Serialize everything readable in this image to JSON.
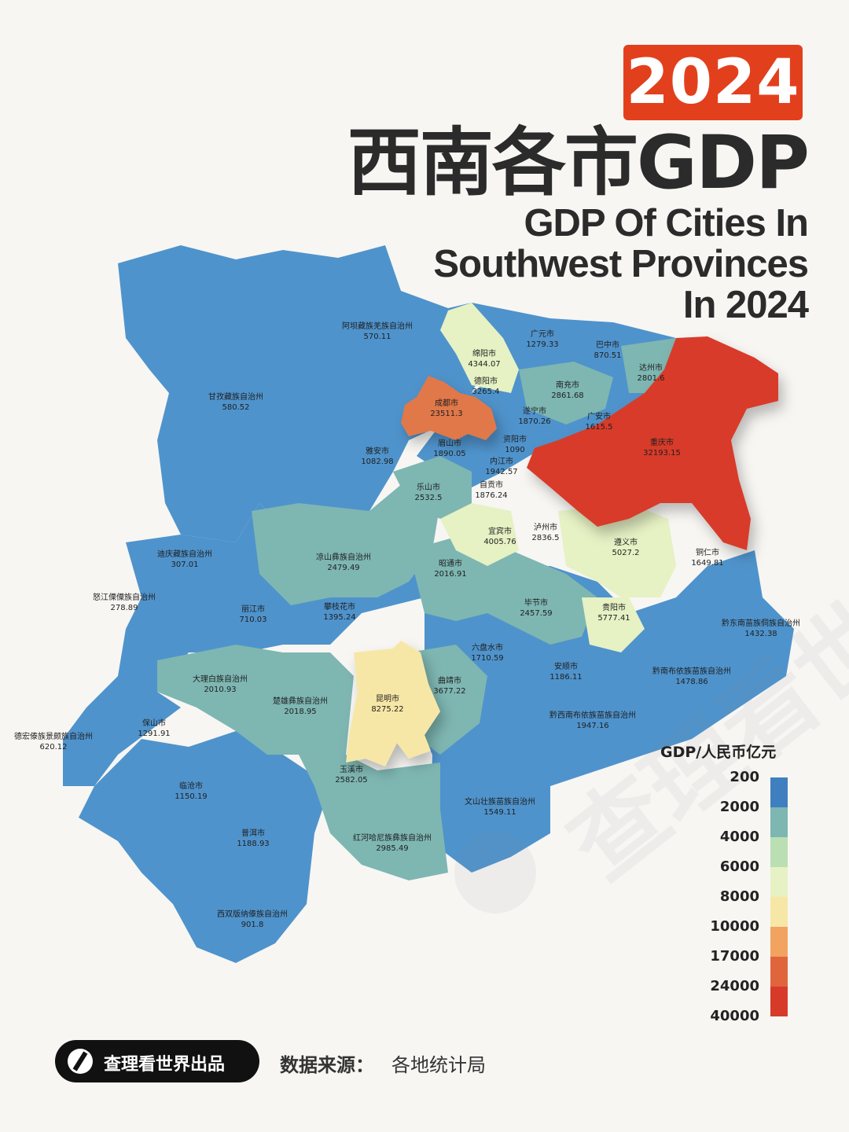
{
  "header": {
    "year": "2024",
    "title_cn": "西南各市GDP",
    "title_en_line1": "GDP Of Cities In",
    "title_en_line2": "Southwest Provinces",
    "title_en_line3": "In 2024"
  },
  "legend": {
    "title": "GDP/人民币亿元",
    "ticks": [
      "200",
      "2000",
      "4000",
      "6000",
      "8000",
      "10000",
      "17000",
      "24000",
      "40000"
    ],
    "colors": [
      "#3f7fbf",
      "#7eb6b2",
      "#b9dfb2",
      "#e6f1c4",
      "#f7e7a6",
      "#f1a35f",
      "#e0653d",
      "#d83a2a"
    ]
  },
  "regions": [
    {
      "name": "阿坝藏族羌族自治州",
      "value": "570.11"
    },
    {
      "name": "甘孜藏族自治州",
      "value": "580.52"
    },
    {
      "name": "广元市",
      "value": "1279.33"
    },
    {
      "name": "巴中市",
      "value": "870.51"
    },
    {
      "name": "绵阳市",
      "value": "4344.07"
    },
    {
      "name": "达州市",
      "value": "2801.6"
    },
    {
      "name": "德阳市",
      "value": "3265.4"
    },
    {
      "name": "南充市",
      "value": "2861.68"
    },
    {
      "name": "成都市",
      "value": "23511.3"
    },
    {
      "name": "遂宁市",
      "value": "1870.26"
    },
    {
      "name": "广安市",
      "value": "1615.5"
    },
    {
      "name": "雅安市",
      "value": "1082.98"
    },
    {
      "name": "眉山市",
      "value": "1890.05"
    },
    {
      "name": "资阳市",
      "value": "1090"
    },
    {
      "name": "重庆市",
      "value": "32193.15"
    },
    {
      "name": "内江市",
      "value": "1942.57"
    },
    {
      "name": "乐山市",
      "value": "2532.5"
    },
    {
      "name": "自贡市",
      "value": "1876.24"
    },
    {
      "name": "宜宾市",
      "value": "4005.76"
    },
    {
      "name": "泸州市",
      "value": "2836.5"
    },
    {
      "name": "迪庆藏族自治州",
      "value": "307.01"
    },
    {
      "name": "凉山彝族自治州",
      "value": "2479.49"
    },
    {
      "name": "昭通市",
      "value": "2016.91"
    },
    {
      "name": "遵义市",
      "value": "5027.2"
    },
    {
      "name": "铜仁市",
      "value": "1649.81"
    },
    {
      "name": "怒江傈僳族自治州",
      "value": "278.89"
    },
    {
      "name": "丽江市",
      "value": "710.03"
    },
    {
      "name": "攀枝花市",
      "value": "1395.24"
    },
    {
      "name": "毕节市",
      "value": "2457.59"
    },
    {
      "name": "贵阳市",
      "value": "5777.41"
    },
    {
      "name": "黔东南苗族侗族自治州",
      "value": "1432.38"
    },
    {
      "name": "六盘水市",
      "value": "1710.59"
    },
    {
      "name": "大理白族自治州",
      "value": "2010.93"
    },
    {
      "name": "安顺市",
      "value": "1186.11"
    },
    {
      "name": "黔南布依族苗族自治州",
      "value": "1478.86"
    },
    {
      "name": "曲靖市",
      "value": "3677.22"
    },
    {
      "name": "昆明市",
      "value": "8275.22"
    },
    {
      "name": "楚雄彝族自治州",
      "value": "2018.95"
    },
    {
      "name": "黔西南布依族苗族自治州",
      "value": "1947.16"
    },
    {
      "name": "保山市",
      "value": "1291.91"
    },
    {
      "name": "德宏傣族景颇族自治州",
      "value": "620.12"
    },
    {
      "name": "临沧市",
      "value": "1150.19"
    },
    {
      "name": "玉溪市",
      "value": "2582.05"
    },
    {
      "name": "文山壮族苗族自治州",
      "value": "1549.11"
    },
    {
      "name": "普洱市",
      "value": "1188.93"
    },
    {
      "name": "红河哈尼族彝族自治州",
      "value": "2985.49"
    },
    {
      "name": "西双版纳傣族自治州",
      "value": "901.8"
    }
  ],
  "footer": {
    "brand": "查理看世界出品",
    "source_label": "数据来源：",
    "source_value": "各地统计局"
  },
  "watermark_text": "查理看世界"
}
